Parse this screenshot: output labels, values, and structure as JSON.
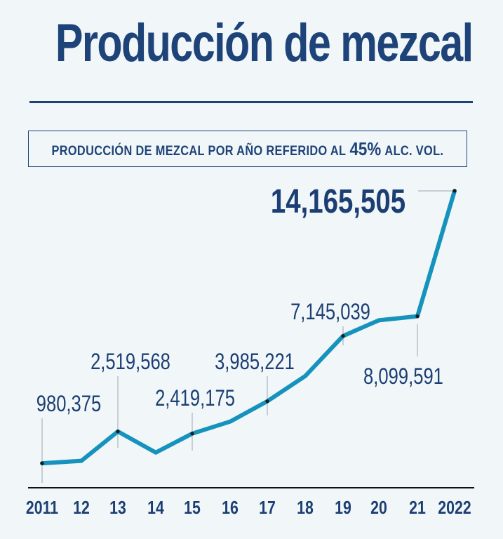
{
  "title": "Producción de mezcal",
  "subtitle": {
    "prefix": "PRODUCCIÓN DE MEZCAL POR AÑO REFERIDO AL",
    "highlight": "45%",
    "suffix": "ALC. VOL."
  },
  "colors": {
    "line": "#1593bd",
    "text": "#1c3f73",
    "background": "#f1f6f9"
  },
  "chart_data": {
    "type": "line",
    "title": "Producción de mezcal",
    "subtitle": "PRODUCCIÓN DE MEZCAL POR AÑO REFERIDO AL 45% ALC. VOL.",
    "categories": [
      "2011",
      "12",
      "13",
      "14",
      "15",
      "16",
      "17",
      "18",
      "19",
      "20",
      "21",
      "2022"
    ],
    "values": [
      980375,
      1100000,
      2519568,
      1500000,
      2419175,
      3000000,
      3985221,
      5200000,
      7145039,
      7900000,
      8099591,
      14165505
    ],
    "labels": [
      {
        "index": 0,
        "text": "980,375"
      },
      {
        "index": 2,
        "text": "2,519,568"
      },
      {
        "index": 4,
        "text": "2,419,175"
      },
      {
        "index": 6,
        "text": "3,985,221"
      },
      {
        "index": 8,
        "text": "7,145,039"
      },
      {
        "index": 10,
        "text": "8,099,591"
      },
      {
        "index": 11,
        "text": "14,165,505"
      }
    ],
    "xlabel": "",
    "ylabel": "",
    "grid": false
  }
}
